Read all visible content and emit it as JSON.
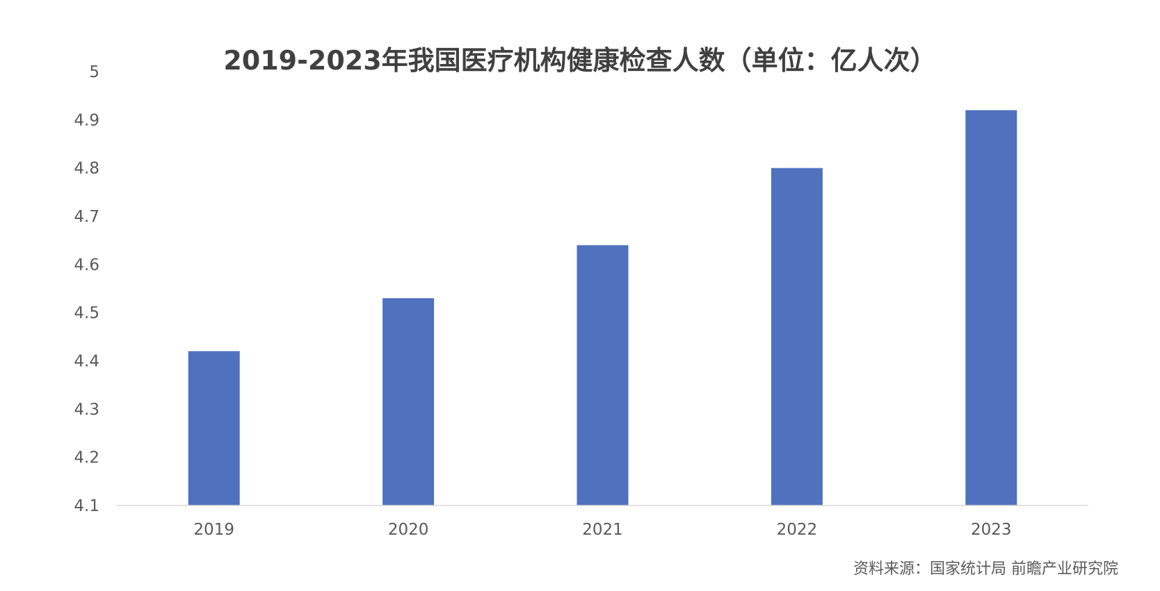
{
  "chart_data": {
    "type": "bar",
    "title": "2019-2023年我国医疗机构健康检查人数（单位：亿人次）",
    "categories": [
      "2019",
      "2020",
      "2021",
      "2022",
      "2023"
    ],
    "values": [
      4.42,
      4.53,
      4.64,
      4.8,
      4.92
    ],
    "ylim": [
      4.1,
      5.0
    ],
    "yticks": [
      "4.1",
      "4.2",
      "4.3",
      "4.4",
      "4.5",
      "4.6",
      "4.7",
      "4.8",
      "4.9",
      "5"
    ],
    "xlabel": "",
    "ylabel": "",
    "grid": false,
    "bar_color": "#4F71BE",
    "source": "资料来源：国家统计局 前瞻产业研究院"
  }
}
